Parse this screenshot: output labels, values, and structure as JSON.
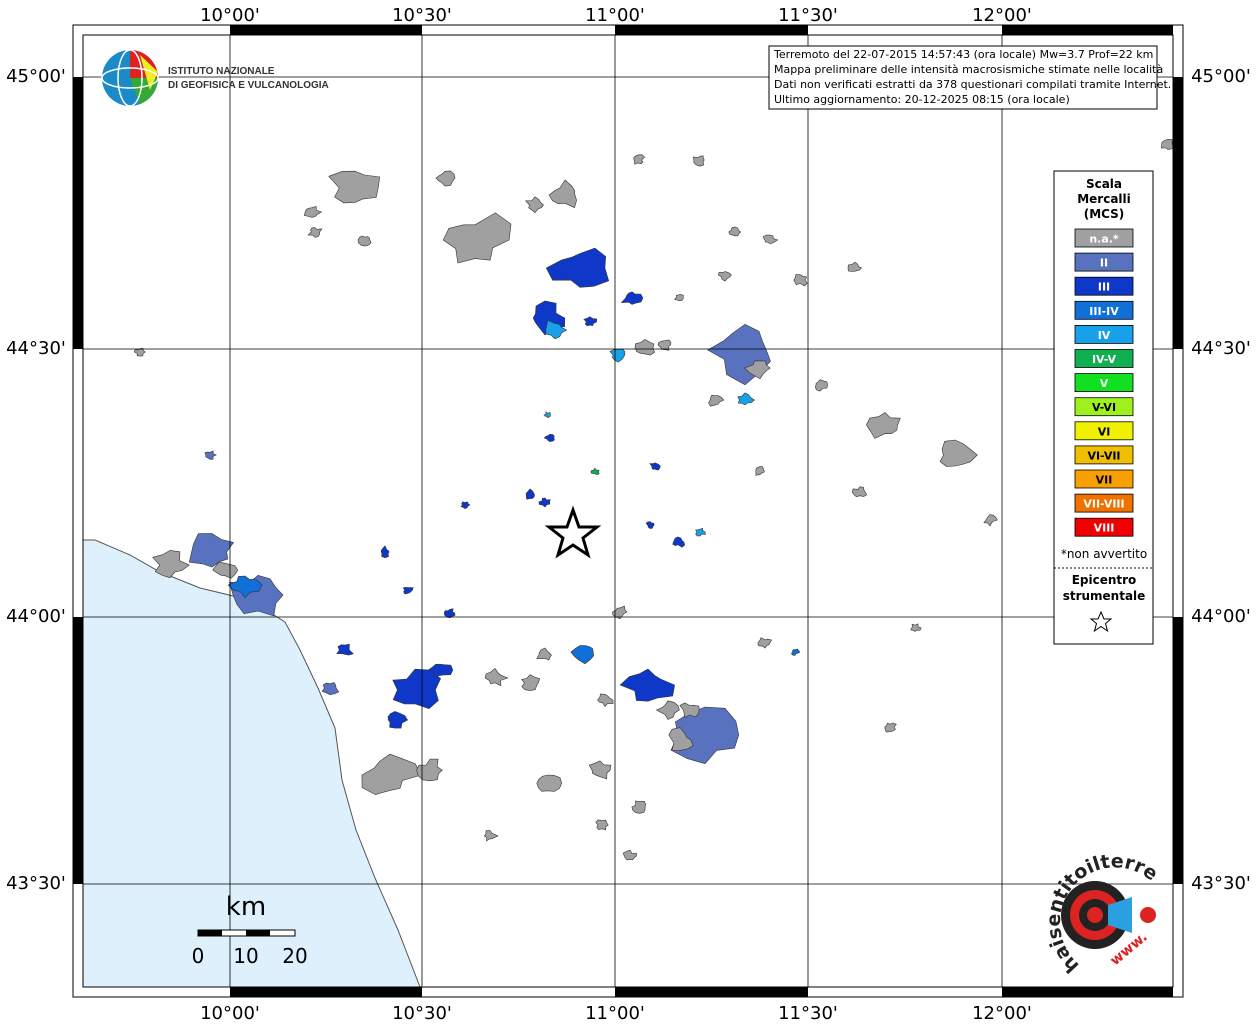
{
  "map": {
    "lon_labels": [
      "10°00'",
      "10°30'",
      "11°00'",
      "11°30'",
      "12°00'"
    ],
    "lat_labels": [
      "45°00'",
      "44°30'",
      "44°00'",
      "43°30'"
    ],
    "info": [
      "Terremoto del 22-07-2015 14:57:43 (ora locale) Mw=3.7 Prof=22 km",
      "Mappa preliminare delle intensità macrosismiche stimate nelle località",
      "Dati non verificati estratti da 378 questionari compilati tramite Internet.",
      "Ultimo aggiornamento: 20-12-2025 08:15 (ora locale)"
    ],
    "logo": [
      "ISTITUTO NAZIONALE",
      "DI GEOFISICA E VULCANOLOGIA"
    ],
    "legend": {
      "title": [
        "Scala",
        "Mercalli",
        "(MCS)"
      ],
      "items": [
        {
          "label": "n.a.*",
          "color": "#a0a0a0"
        },
        {
          "label": "II",
          "color": "#5872c0"
        },
        {
          "label": "III",
          "color": "#1038c8"
        },
        {
          "label": "III-IV",
          "color": "#1070d8"
        },
        {
          "label": "IV",
          "color": "#18a0e8"
        },
        {
          "label": "IV-V",
          "color": "#10b050"
        },
        {
          "label": "V",
          "color": "#10e020"
        },
        {
          "label": "V-VI",
          "color": "#a0f020"
        },
        {
          "label": "VI",
          "color": "#f0f000"
        },
        {
          "label": "VI-VII",
          "color": "#f0c000"
        },
        {
          "label": "VII",
          "color": "#f8a000"
        },
        {
          "label": "VII-VIII",
          "color": "#f07000"
        },
        {
          "label": "VIII",
          "color": "#f00000"
        }
      ],
      "note": "*non avvertito",
      "epicenter": [
        "Epicentro",
        "strumentale"
      ]
    },
    "scale": {
      "unit": "km",
      "labels": [
        "0",
        "10",
        "20"
      ]
    },
    "site": [
      "haisentitoilterremoto.it",
      "www."
    ]
  }
}
